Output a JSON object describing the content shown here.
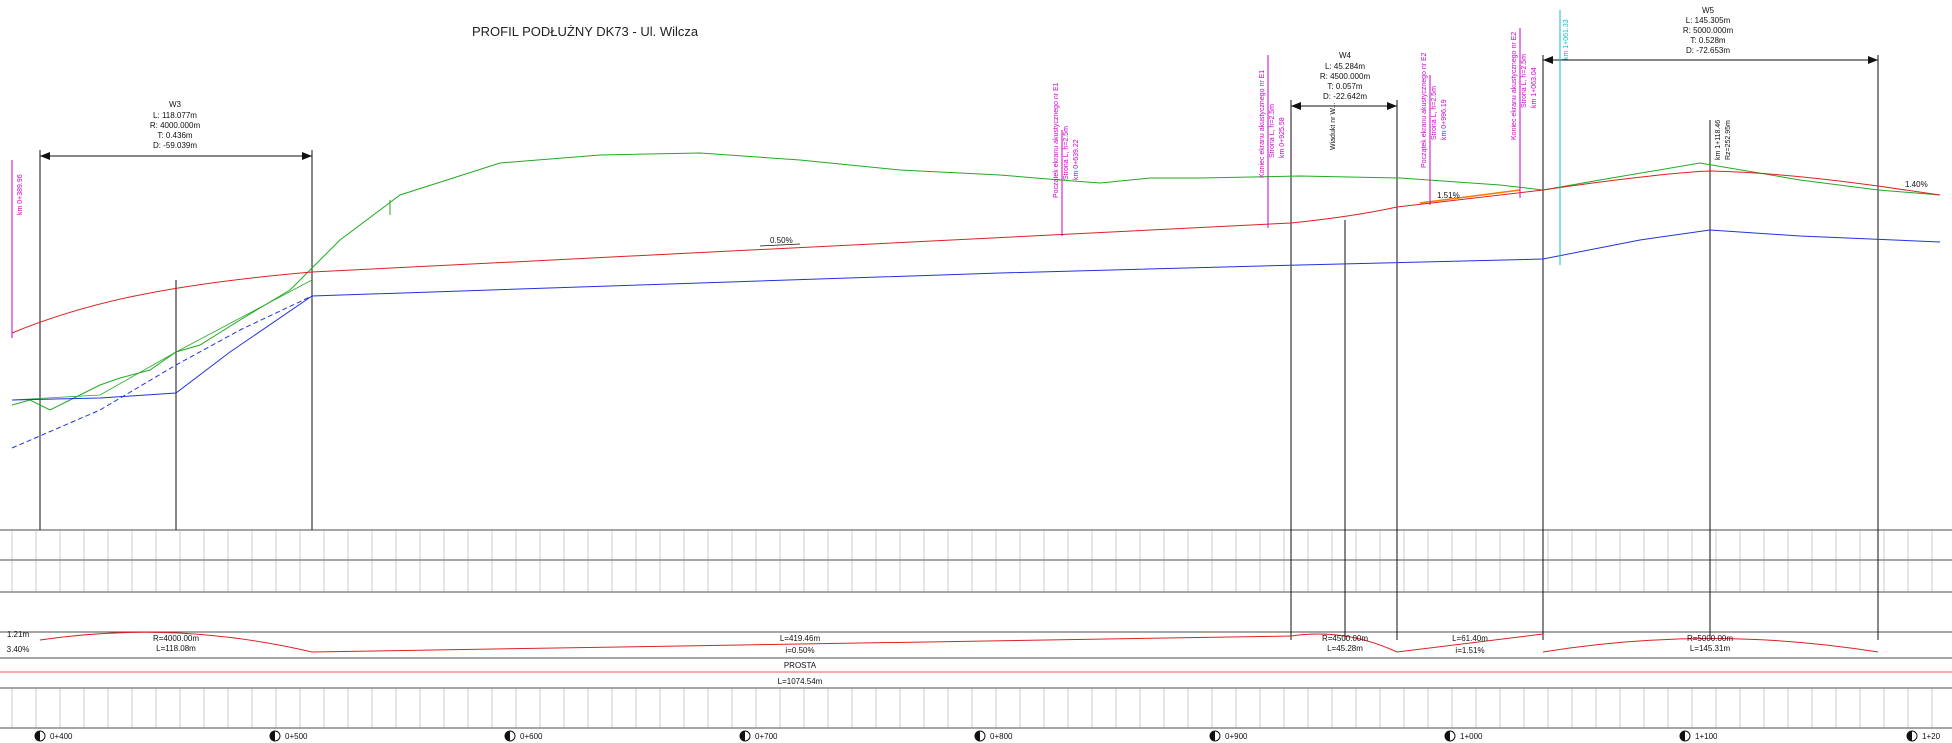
{
  "title": "PROFIL PODŁUŻNY DK73 - Ul. Wilcza",
  "curves": {
    "w3": {
      "name": "W3",
      "L": "L: 118.077m",
      "R": "R: 4000.000m",
      "T": "T: 0.436m",
      "D": "D: -59.039m"
    },
    "w4": {
      "name": "W4",
      "L": "L: 45.284m",
      "R": "R: 4500.000m",
      "T": "T: 0.057m",
      "D": "D: -22.642m"
    },
    "w5": {
      "name": "W5",
      "L": "L: 145.305m",
      "R": "R: 5000.000m",
      "T": "T: 0.528m",
      "D": "D: -72.653m"
    }
  },
  "grades": {
    "g050": "0.50%",
    "g151": "1.51%",
    "g140": "1.40%"
  },
  "annotations": {
    "a1": "Początek ekranu akustycznego nr E1",
    "a1b": "Strona L, h=2.5m",
    "a1c": "km 0+639.22",
    "a2": "Koniec ekranu akustycznego nr E1",
    "a2b": "Strona L, h=2.5m",
    "a2c": "km 0+925.58",
    "a3": "Początek ekranu akustycznego nr E2",
    "a3b": "Strona L, h=2.5m",
    "a3c": "km 0+996.19",
    "a4": "Koniec ekranu akustycznego nr E2",
    "a4b": "Strona L, h=2.5m",
    "a4c": "km 1+063.04",
    "a5": "km 1+061.33",
    "left": "km 0+389.96",
    "crest": "km 1+118.46",
    "crest2": "Rz=252.95m",
    "wiadukt": "Wiadukt nr W..."
  },
  "bands": {
    "arc1": "R=4000.00m",
    "arc1b": "L=118.08m",
    "arc2": "L=419.46m",
    "arc2b": "i=0.50%",
    "arc3": "R=4500.00m",
    "arc3b": "L=45.28m",
    "arc4": "L=61.40m",
    "arc4b": "i=1.51%",
    "arc5": "R=5000.00m",
    "arc5b": "L=145.31m",
    "prosta": "PROSTA",
    "prosta_len": "L=1074.54m",
    "left_vals": "1.21m",
    "left_pct": "3.40%"
  },
  "km_labels": [
    "0+400",
    "0+500",
    "0+600",
    "0+700",
    "0+800",
    "0+900",
    "1+000",
    "1+100",
    "1+20"
  ],
  "colors": {
    "terrain": "#22aa22",
    "grade": "#dd2222",
    "drain": "#2233dd",
    "annot": "#cc00cc",
    "cyan": "#11bbcc"
  }
}
